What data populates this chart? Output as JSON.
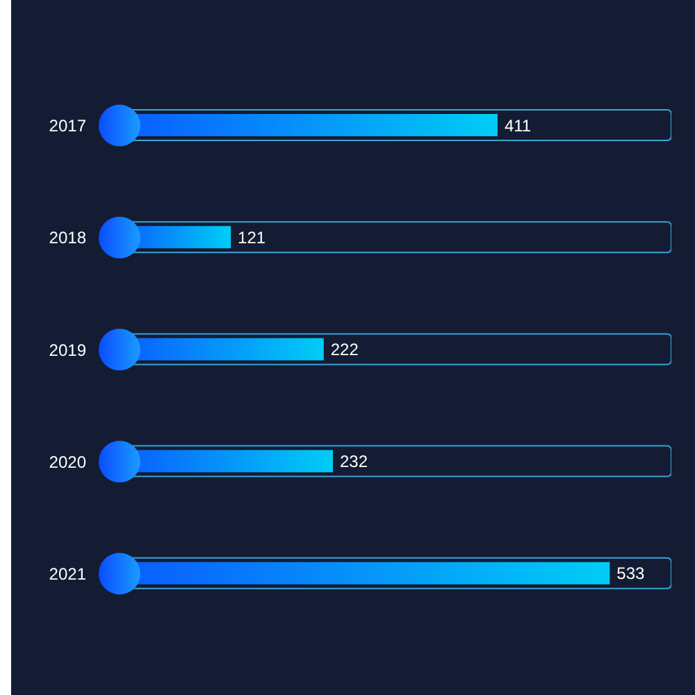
{
  "chart_data": {
    "type": "bar",
    "orientation": "horizontal",
    "categories": [
      "2017",
      "2018",
      "2019",
      "2020",
      "2021"
    ],
    "series": [
      {
        "color": "#0a5cff",
        "values": [
          411,
          121,
          222,
          232,
          533
        ],
        "value_labels": [
          "411",
          "121",
          "222",
          "232",
          "533"
        ]
      },
      {
        "color": "#3aa4d6",
        "values": [
          600,
          600,
          600,
          600,
          600
        ]
      }
    ]
  }
}
